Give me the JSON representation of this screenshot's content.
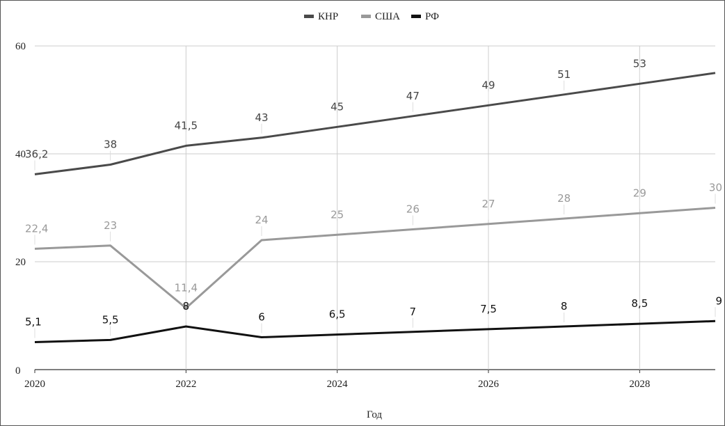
{
  "chart_data": {
    "type": "line",
    "x": [
      2020,
      2021,
      2022,
      2023,
      2024,
      2025,
      2026,
      2027,
      2028,
      2029
    ],
    "x_ticks": [
      "2020",
      "2022",
      "2024",
      "2026",
      "2028"
    ],
    "y_ticks": [
      "0",
      "20",
      "40",
      "60"
    ],
    "ylim": [
      0,
      60
    ],
    "xlim": [
      2020,
      2029
    ],
    "xlabel": "Год",
    "ylabel": "",
    "grid": true,
    "legend_position": "top-center",
    "series": [
      {
        "name": "КНР",
        "color": "#4a4a4a",
        "label_color": "#444444",
        "values": [
          36.2,
          38,
          41.5,
          43,
          45,
          47,
          49,
          51,
          53,
          55
        ],
        "labels": [
          "36,2",
          "38",
          "41,5",
          "43",
          "45",
          "47",
          "49",
          "51",
          "53",
          ""
        ]
      },
      {
        "name": "США",
        "color": "#999999",
        "label_color": "#999999",
        "values": [
          22.4,
          23,
          11.4,
          24,
          25,
          26,
          27,
          28,
          29,
          30
        ],
        "labels": [
          "22,4",
          "23",
          "11,4",
          "24",
          "25",
          "26",
          "27",
          "28",
          "29",
          "30"
        ]
      },
      {
        "name": "РФ",
        "color": "#111111",
        "label_color": "#111111",
        "values": [
          5.1,
          5.5,
          8,
          6,
          6.5,
          7,
          7.5,
          8,
          8.5,
          9
        ],
        "labels": [
          "5,1",
          "5,5",
          "8",
          "6",
          "6,5",
          "7",
          "7,5",
          "8",
          "8,5",
          "9"
        ]
      }
    ]
  }
}
